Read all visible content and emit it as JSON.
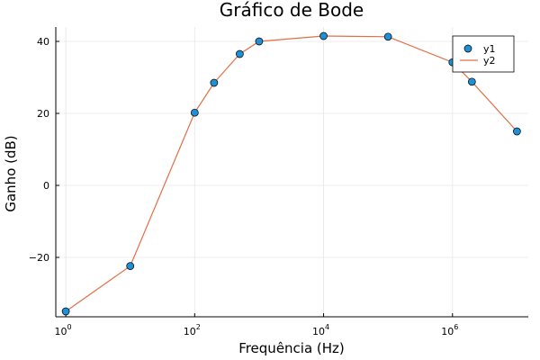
{
  "chart_data": {
    "type": "scatter",
    "title": "Gráfico de Bode",
    "xlabel": "Frequência (Hz)",
    "ylabel": "Ganho (dB)",
    "xscale": "log10",
    "xlim": [
      0.7,
      15000000
    ],
    "ylim": [
      -36.5,
      44
    ],
    "grid": true,
    "legend_position": "top-right",
    "x_ticks": [
      {
        "value": 1,
        "base": "10",
        "exp": "0"
      },
      {
        "value": 100,
        "base": "10",
        "exp": "2"
      },
      {
        "value": 10000,
        "base": "10",
        "exp": "4"
      },
      {
        "value": 1000000,
        "base": "10",
        "exp": "6"
      }
    ],
    "y_ticks": [
      {
        "value": -20,
        "label": "−20"
      },
      {
        "value": 0,
        "label": "0"
      },
      {
        "value": 20,
        "label": "20"
      },
      {
        "value": 40,
        "label": "40"
      }
    ],
    "series": [
      {
        "name": "y1",
        "kind": "scatter",
        "color": "#1f8fd6",
        "x": [
          1,
          10,
          100,
          200,
          500,
          1000,
          10000,
          100000,
          1000000,
          2000000,
          10000000
        ],
        "y": [
          -35,
          -22.4,
          20.2,
          28.5,
          36.5,
          40,
          41.5,
          41.3,
          34.2,
          28.8,
          15
        ]
      },
      {
        "name": "y2",
        "kind": "line",
        "color": "#e26f46",
        "x": [
          1,
          10,
          100,
          200,
          500,
          1000,
          10000,
          100000,
          1000000,
          2000000,
          10000000
        ],
        "y": [
          -35,
          -22.4,
          20.2,
          28.5,
          36.5,
          40,
          41.5,
          41.3,
          34.2,
          28.8,
          15
        ]
      }
    ]
  }
}
